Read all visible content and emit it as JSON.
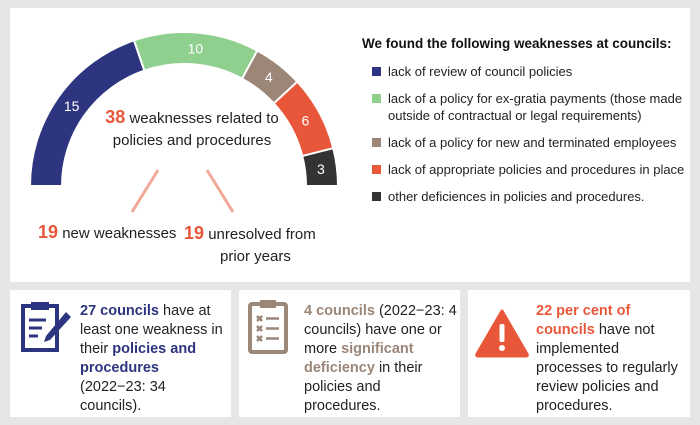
{
  "chart_data": {
    "type": "pie",
    "style": "semi-donut",
    "values": [
      15,
      10,
      4,
      6,
      3
    ],
    "labels": [
      "15",
      "10",
      "4",
      "6",
      "3"
    ],
    "colors": [
      "#2e3580",
      "#8fd08f",
      "#9b8678",
      "#e8573a",
      "#333333"
    ],
    "legend_title": "We found the following weaknesses at councils:",
    "legend": [
      "lack of review of council policies",
      "lack of a policy for ex-gratia payments (those made outside of contractual or legal requirements)",
      "lack of a policy for new and terminated employees",
      "lack of appropriate policies and procedures in place",
      "other deficiences in policies and procedures."
    ],
    "legend_placement": "right",
    "total": {
      "value": "38",
      "text": "weaknesses related to policies and procedures"
    },
    "breakdown": [
      {
        "value": "19",
        "text": "new weaknesses"
      },
      {
        "value": "19",
        "text_line1": "unresolved from",
        "text_line2": "prior years"
      }
    ]
  },
  "boxes": [
    {
      "icon": "document-pen-icon",
      "color": "#2e3580",
      "bold1": "27 councils",
      "t1": " have at least one weakness in their ",
      "bold2": "policies and procedures",
      "t2": " (2022−23: 34 councils)."
    },
    {
      "icon": "checklist-icon",
      "color": "#9b8678",
      "bold1": "4 councils",
      "t1": " (2022−23: 4 councils) have one or more ",
      "bold2": "significant deficiency",
      "t2": " in their policies and procedures."
    },
    {
      "icon": "warning-icon",
      "color": "#e8573a",
      "bold1": "22 per cent of councils",
      "t1": " have not implemented processes to regularly review policies and procedures."
    }
  ]
}
